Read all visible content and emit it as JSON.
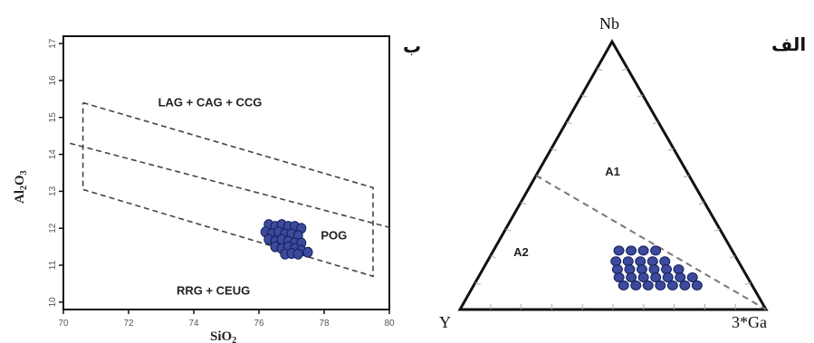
{
  "chart_data": [
    {
      "type": "scatter",
      "panel_label": "ب",
      "xlabel": "SiO",
      "xlabel_sub": "2",
      "ylabel": "Al",
      "ylabel_sub1": "2",
      "ylabel_mid": "O",
      "ylabel_sub2": "3",
      "xlim": [
        70,
        80
      ],
      "ylim": [
        9.8,
        17.2
      ],
      "xticks": [
        "70",
        "72",
        "74",
        "76",
        "78",
        "80"
      ],
      "yticks": [
        "10",
        "11",
        "12",
        "13",
        "14",
        "15",
        "16",
        "17"
      ],
      "field_labels": [
        {
          "text": "LAG + CAG + CCG",
          "x": 74.5,
          "y": 15.3
        },
        {
          "text": "POG",
          "x": 78.3,
          "y": 11.7
        },
        {
          "text": "RRG + CEUG",
          "x": 74.6,
          "y": 10.2
        }
      ],
      "dashed_lines": [
        [
          [
            70.6,
            15.4
          ],
          [
            79.5,
            13.1
          ],
          [
            79.5,
            10.7
          ],
          [
            70.6,
            13.05
          ],
          [
            70.6,
            15.4
          ]
        ],
        [
          [
            70.2,
            14.3
          ],
          [
            80.1,
            12.0
          ]
        ]
      ],
      "series": [
        {
          "points": [
            [
              76.3,
              12.1
            ],
            [
              76.5,
              12.05
            ],
            [
              76.7,
              12.1
            ],
            [
              76.9,
              12.05
            ],
            [
              77.1,
              12.05
            ],
            [
              77.3,
              12.0
            ],
            [
              76.2,
              11.9
            ],
            [
              76.4,
              11.85
            ],
            [
              76.6,
              11.9
            ],
            [
              76.8,
              11.85
            ],
            [
              77.0,
              11.85
            ],
            [
              77.2,
              11.8
            ],
            [
              76.3,
              11.7
            ],
            [
              76.5,
              11.65
            ],
            [
              76.7,
              11.7
            ],
            [
              76.9,
              11.65
            ],
            [
              77.1,
              11.6
            ],
            [
              77.3,
              11.6
            ],
            [
              76.5,
              11.5
            ],
            [
              76.7,
              11.45
            ],
            [
              76.9,
              11.5
            ],
            [
              77.1,
              11.45
            ],
            [
              77.3,
              11.4
            ],
            [
              77.5,
              11.35
            ],
            [
              76.8,
              11.3
            ],
            [
              77.0,
              11.32
            ],
            [
              77.2,
              11.3
            ]
          ]
        }
      ]
    },
    {
      "type": "scatter",
      "subtype": "ternary",
      "panel_label": "الف",
      "vertices": {
        "top": "Nb",
        "left": "Y",
        "right": "3*Ga"
      },
      "field_labels": [
        {
          "text": "A1",
          "nb": 0.5,
          "y": 0.25,
          "ga": 0.25
        },
        {
          "text": "A2",
          "nb": 0.2,
          "y": 0.7,
          "ga": 0.1
        }
      ],
      "divider": [
        {
          "nb": 0.5,
          "y": 0.5,
          "ga": 0.0
        },
        {
          "nb": 0.0,
          "y": 0.0,
          "ga": 1.0
        }
      ],
      "series": [
        {
          "points": [
            [
              0.22,
              0.37,
              0.41
            ],
            [
              0.22,
              0.33,
              0.45
            ],
            [
              0.22,
              0.29,
              0.49
            ],
            [
              0.22,
              0.25,
              0.53
            ],
            [
              0.18,
              0.4,
              0.42
            ],
            [
              0.18,
              0.36,
              0.46
            ],
            [
              0.18,
              0.32,
              0.5
            ],
            [
              0.18,
              0.28,
              0.54
            ],
            [
              0.18,
              0.24,
              0.58
            ],
            [
              0.15,
              0.41,
              0.44
            ],
            [
              0.15,
              0.37,
              0.48
            ],
            [
              0.15,
              0.33,
              0.52
            ],
            [
              0.15,
              0.29,
              0.56
            ],
            [
              0.15,
              0.25,
              0.6
            ],
            [
              0.15,
              0.21,
              0.64
            ],
            [
              0.12,
              0.42,
              0.46
            ],
            [
              0.12,
              0.38,
              0.5
            ],
            [
              0.12,
              0.34,
              0.54
            ],
            [
              0.12,
              0.3,
              0.58
            ],
            [
              0.12,
              0.26,
              0.62
            ],
            [
              0.12,
              0.22,
              0.66
            ],
            [
              0.12,
              0.18,
              0.7
            ],
            [
              0.09,
              0.42,
              0.49
            ],
            [
              0.09,
              0.38,
              0.53
            ],
            [
              0.09,
              0.34,
              0.57
            ],
            [
              0.09,
              0.3,
              0.61
            ],
            [
              0.09,
              0.26,
              0.65
            ],
            [
              0.09,
              0.22,
              0.69
            ],
            [
              0.09,
              0.18,
              0.73
            ]
          ]
        }
      ]
    }
  ]
}
